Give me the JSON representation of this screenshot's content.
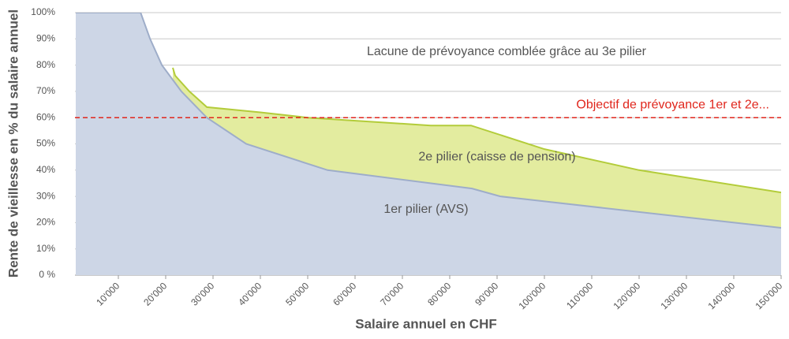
{
  "chart_data": {
    "type": "area",
    "ylabel": "Rente de vieillesse en % du salaire annuel",
    "xlabel": "Salaire annuel en CHF",
    "xlim": [
      0,
      150000
    ],
    "ylim": [
      0,
      100
    ],
    "grid": true,
    "xticks": [
      {
        "value": 10000,
        "label": "10'000"
      },
      {
        "value": 20000,
        "label": "20'000"
      },
      {
        "value": 30000,
        "label": "30'000"
      },
      {
        "value": 40000,
        "label": "40'000"
      },
      {
        "value": 50000,
        "label": "50'000"
      },
      {
        "value": 60000,
        "label": "60'000"
      },
      {
        "value": 70000,
        "label": "70'000"
      },
      {
        "value": 80000,
        "label": "80'000"
      },
      {
        "value": 90000,
        "label": "90'000"
      },
      {
        "value": 100000,
        "label": "100'000"
      },
      {
        "value": 110000,
        "label": "110'000"
      },
      {
        "value": 120000,
        "label": "120'000"
      },
      {
        "value": 130000,
        "label": "130'000"
      },
      {
        "value": 140000,
        "label": "140'000"
      },
      {
        "value": 150000,
        "label": "150'000"
      }
    ],
    "yticks": [
      {
        "value": 0,
        "label": "0 %"
      },
      {
        "value": 10,
        "label": "10%"
      },
      {
        "value": 20,
        "label": "20%"
      },
      {
        "value": 30,
        "label": "30%"
      },
      {
        "value": 40,
        "label": "40%"
      },
      {
        "value": 50,
        "label": "50%"
      },
      {
        "value": 60,
        "label": "60%"
      },
      {
        "value": 70,
        "label": "70%"
      },
      {
        "value": 80,
        "label": "80%"
      },
      {
        "value": 90,
        "label": "90%"
      },
      {
        "value": 100,
        "label": "100%"
      }
    ],
    "series": [
      {
        "name": "2e pilier (caisse de pension)",
        "color": "#b3cc3a",
        "fill": "#e3ec9f",
        "x": [
          21500,
          22000,
          25000,
          28700,
          40000,
          50000,
          76000,
          84500,
          100000,
          120000,
          150000
        ],
        "values": [
          79,
          76,
          70,
          64,
          62,
          60,
          57,
          57,
          48,
          40,
          31.5
        ]
      },
      {
        "name": "1er pilier (AVS)",
        "color": "#9eadc9",
        "fill": "#cdd6e6",
        "x": [
          1000,
          14700,
          16700,
          19200,
          23300,
          28700,
          37000,
          54200,
          84700,
          90700,
          150000
        ],
        "values": [
          100,
          100,
          90,
          80,
          70,
          60,
          50,
          40,
          33,
          30,
          18
        ]
      }
    ],
    "annotations": [
      {
        "text": "Lacune de prévoyance comblée grâce au 3e pilier",
        "x": 92000,
        "y": 85
      },
      {
        "text": "2e pilier (caisse de pension)",
        "x": 90000,
        "y": 45
      },
      {
        "text": "1er pilier (AVS)",
        "x": 75000,
        "y": 25
      }
    ],
    "target": {
      "value": 60,
      "label": "Objectif de prévoyance 1er et 2e...",
      "color": "#e0261c"
    }
  }
}
